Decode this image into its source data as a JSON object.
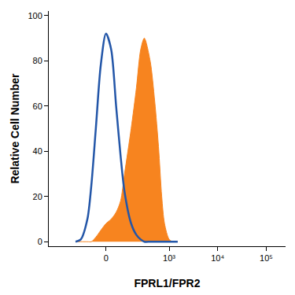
{
  "chart_data": {
    "type": "line",
    "x_label": "FPRL1/FPR2",
    "y_label": "Relative Cell Number",
    "x": [
      -200,
      -150,
      -100,
      -75,
      -50,
      -25,
      0,
      25,
      50,
      75,
      100,
      150,
      200,
      250,
      300,
      400,
      500,
      600,
      700,
      800,
      1000,
      1200,
      1500
    ],
    "series": [
      {
        "type": "area",
        "color": "#f7841f",
        "values": [
          0,
          0,
          0,
          0,
          2,
          5,
          8,
          10,
          13,
          18,
          30,
          50,
          68,
          85,
          90,
          80,
          62,
          42,
          20,
          8,
          1,
          0,
          0
        ]
      },
      {
        "type": "line",
        "color": "#2356a8",
        "values": [
          0,
          1,
          10,
          25,
          50,
          78,
          92,
          85,
          60,
          38,
          22,
          8,
          3,
          1,
          0,
          0,
          0,
          0,
          0,
          0,
          0,
          0,
          0
        ]
      }
    ],
    "xlim": [
      -750,
      250000
    ],
    "xticks": [
      0,
      {
        "value": 1000,
        "label": "10³"
      },
      {
        "value": 10000,
        "label": "10⁴"
      },
      {
        "value": 100000,
        "label": "10⁵"
      }
    ],
    "ylim": [
      -2,
      102
    ],
    "yticks": [
      0,
      20,
      40,
      60,
      80,
      100
    ],
    "grid": false
  }
}
